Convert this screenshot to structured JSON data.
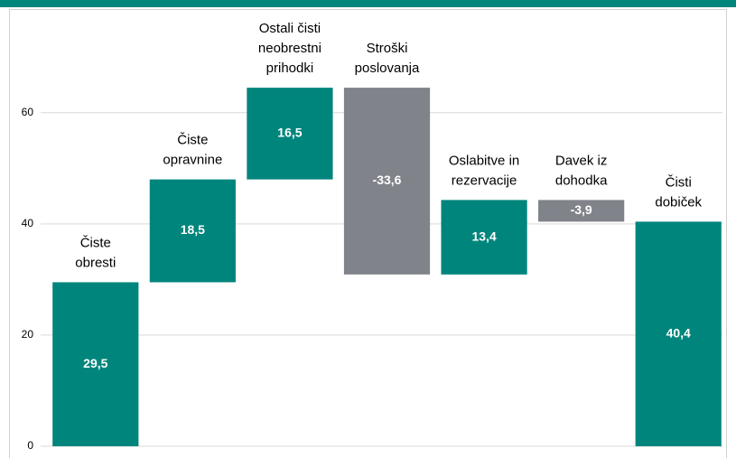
{
  "chart_data": {
    "type": "waterfall",
    "categories": [
      [
        "Čiste",
        "obresti"
      ],
      [
        "Čiste",
        "opravnine"
      ],
      [
        "Ostali čisti",
        "neobrestni",
        "prihodki"
      ],
      [
        "Stroški",
        "poslovanja"
      ],
      [
        "Oslabitve in",
        "rezervacije"
      ],
      [
        "Davek iz",
        "dohodka"
      ],
      [
        "Čisti",
        "dobiček"
      ]
    ],
    "values": [
      29.5,
      18.5,
      16.5,
      -33.6,
      13.4,
      -3.9,
      40.4
    ],
    "value_labels": [
      "29,5",
      "18,5",
      "16,5",
      "-33,6",
      "13,4",
      "-3,9",
      "40,4"
    ],
    "last_is_total": true,
    "increase_color": "#00857c",
    "decrease_color": "#808389",
    "total_color": "#00857c",
    "ylim": [
      0,
      78
    ],
    "yticks": [
      0,
      20,
      40,
      60
    ],
    "grid": true
  }
}
